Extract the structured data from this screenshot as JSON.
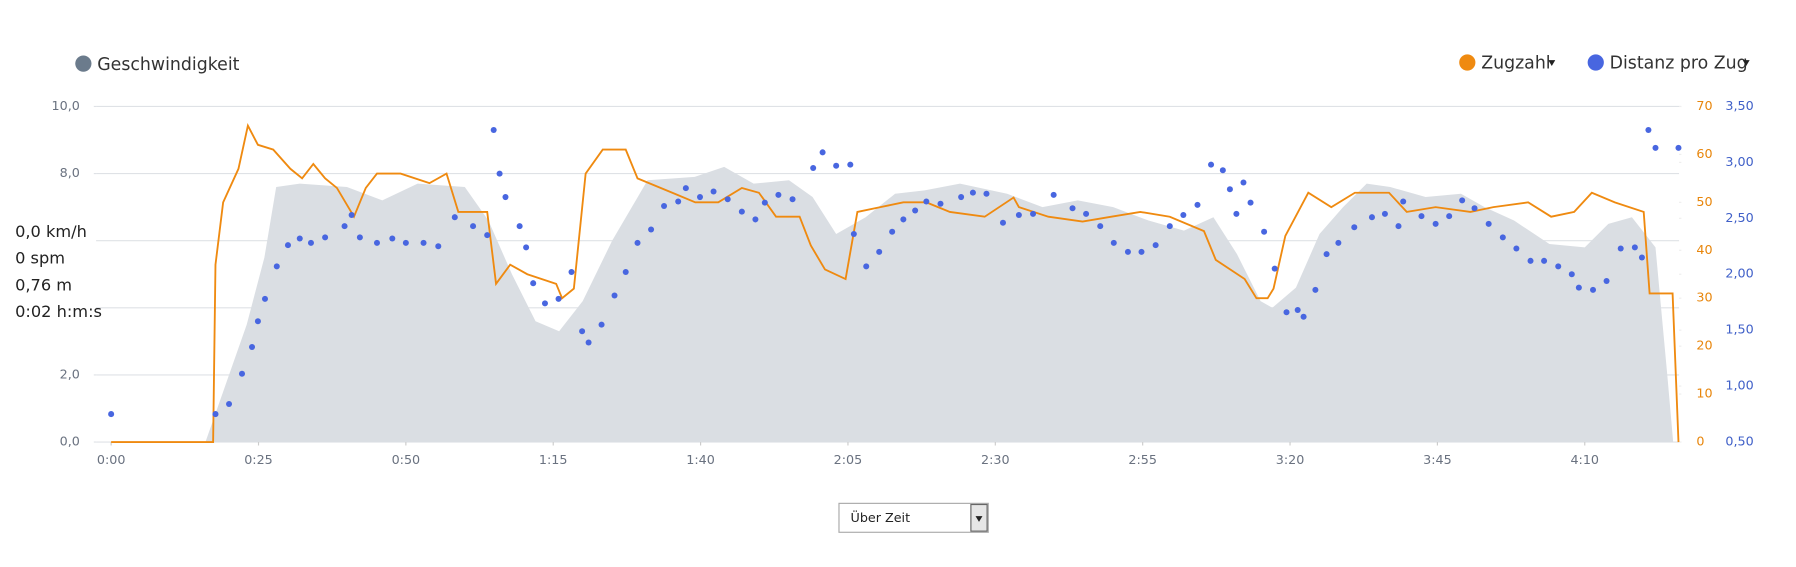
{
  "chart_data": {
    "type": "combo",
    "xlim": [
      0,
      266
    ],
    "xticks": [
      {
        "value": 0,
        "label": "0:00"
      },
      {
        "value": 25,
        "label": "0:25"
      },
      {
        "value": 50,
        "label": "0:50"
      },
      {
        "value": 75,
        "label": "1:15"
      },
      {
        "value": 100,
        "label": "1:40"
      },
      {
        "value": 125,
        "label": "2:05"
      },
      {
        "value": 150,
        "label": "2:30"
      },
      {
        "value": 175,
        "label": "2:55"
      },
      {
        "value": 200,
        "label": "3:20"
      },
      {
        "value": 225,
        "label": "3:45"
      },
      {
        "value": 250,
        "label": "4:10"
      }
    ],
    "ylim": [
      0,
      10
    ],
    "yticks": [
      {
        "value": 0,
        "label": "0,0"
      },
      {
        "value": 2,
        "label": "2,0"
      },
      {
        "value": 8,
        "label": "8,0"
      },
      {
        "value": 10,
        "label": "10,0"
      }
    ],
    "y2lim": [
      0,
      70
    ],
    "y2ticks": [
      0,
      10,
      20,
      30,
      40,
      50,
      60,
      70
    ],
    "y3lim": [
      0.5,
      3.5
    ],
    "y3ticks": [
      {
        "value": 0.5,
        "label": "0,50"
      },
      {
        "value": 1,
        "label": "1,00"
      },
      {
        "value": 1.5,
        "label": "1,50"
      },
      {
        "value": 2,
        "label": "2,00"
      },
      {
        "value": 2.5,
        "label": "2,50"
      },
      {
        "value": 3,
        "label": "3,00"
      },
      {
        "value": 3.5,
        "label": "3,50"
      }
    ],
    "grid": true,
    "series": [
      {
        "name": "Geschwindigkeit",
        "kind": "area",
        "color": "#dadee3",
        "legend_color": "#6b7b8c",
        "axis": "y",
        "x": [
          0,
          16,
          19,
          23,
          26,
          28,
          32,
          40,
          46,
          52,
          60,
          64,
          68,
          72,
          76,
          80,
          85,
          91,
          99,
          104,
          109,
          115,
          119,
          123,
          128,
          133,
          138,
          144,
          152,
          158,
          164,
          170,
          176,
          182,
          187,
          191,
          195,
          197,
          201,
          205,
          209,
          213,
          217,
          223,
          229,
          233,
          238,
          244,
          250,
          254,
          258,
          262,
          264,
          265
        ],
        "values": [
          0,
          0,
          1.5,
          3.5,
          5.5,
          7.6,
          7.7,
          7.6,
          7.2,
          7.7,
          7.6,
          6.6,
          5.0,
          3.6,
          3.3,
          4.2,
          6.0,
          7.8,
          7.9,
          8.2,
          7.7,
          7.8,
          7.3,
          6.2,
          6.7,
          7.4,
          7.5,
          7.7,
          7.4,
          7.0,
          7.2,
          7.0,
          6.6,
          6.3,
          6.7,
          5.6,
          4.2,
          4.0,
          4.6,
          6.2,
          7.0,
          7.7,
          7.6,
          7.3,
          7.4,
          7.0,
          6.6,
          5.9,
          5.8,
          6.5,
          6.7,
          5.8,
          2,
          0
        ]
      },
      {
        "name": "Zugzahl",
        "kind": "line",
        "color": "#ef8a10",
        "axis": "y2",
        "x": [
          0,
          17.3,
          17.7,
          19,
          21.6,
          23.2,
          24.9,
          27.5,
          30.4,
          32.4,
          34.3,
          36.3,
          38.3,
          41.2,
          43.2,
          45.1,
          49.1,
          54,
          56.9,
          58.9,
          63.8,
          65.3,
          67.7,
          70.6,
          75.5,
          76.5,
          78.5,
          80.5,
          83.4,
          87.3,
          89.3,
          95.2,
          99.1,
          103,
          107,
          109.9,
          112.8,
          116.8,
          118.7,
          121.1,
          124.6,
          126.6,
          130.5,
          134.4,
          138.3,
          142.3,
          148.2,
          153.1,
          154,
          159,
          164.8,
          169.7,
          174.6,
          179.6,
          185.4,
          187.4,
          192.3,
          194.3,
          196.2,
          197.2,
          199.2,
          203.1,
          207,
          211,
          216.8,
          219.8,
          224.7,
          230.6,
          234.5,
          240.4,
          244.3,
          248.2,
          251.2,
          255.1,
          260,
          261,
          264.9,
          265.9
        ],
        "values": [
          0,
          0,
          37,
          50,
          57,
          66,
          62,
          61,
          57,
          55,
          58,
          55,
          53,
          47,
          53,
          56,
          56,
          54,
          56,
          48,
          48,
          33,
          37,
          35,
          33,
          30,
          32,
          56,
          61,
          61,
          55,
          52,
          50,
          50,
          53,
          52,
          47,
          47,
          41,
          36,
          34,
          48,
          49,
          50,
          50,
          48,
          47,
          51,
          49,
          47,
          46,
          47,
          48,
          47,
          44,
          38,
          34,
          30,
          30,
          32,
          43,
          52,
          49,
          52,
          52,
          48,
          49,
          48,
          49,
          50,
          47,
          48,
          52,
          50,
          48,
          31,
          31,
          0
        ]
      },
      {
        "name": "Distanz pro Zug",
        "kind": "dots",
        "color": "#4866e0",
        "axis": "y3",
        "x": [
          0,
          17.7,
          20,
          22.2,
          23.9,
          24.9,
          26.1,
          28.1,
          30,
          32,
          33.9,
          36.3,
          39.6,
          40.8,
          42.2,
          45.1,
          47.7,
          50,
          53,
          55.5,
          58.3,
          61.4,
          63.8,
          64.9,
          65.9,
          66.9,
          69.3,
          70.4,
          71.6,
          73.6,
          75.9,
          78.1,
          79.9,
          81,
          83.2,
          85.4,
          87.3,
          89.3,
          91.6,
          93.8,
          96.2,
          97.5,
          99.9,
          102.2,
          104.6,
          107,
          109.3,
          110.9,
          113.2,
          115.6,
          119.1,
          120.7,
          123,
          125.4,
          126,
          128.1,
          130.3,
          132.5,
          134.4,
          136.4,
          138.3,
          140.7,
          144.2,
          146.2,
          148.5,
          151.3,
          154,
          156.4,
          159.9,
          163.1,
          165.4,
          167.8,
          170.1,
          172.5,
          174.8,
          177.2,
          179.6,
          181.9,
          184.3,
          186.6,
          188.6,
          189.8,
          190.9,
          192.1,
          193.3,
          195.6,
          197.4,
          199.4,
          201.3,
          202.3,
          204.3,
          206.2,
          208.2,
          210.9,
          213.9,
          216.1,
          218.4,
          219.2,
          222.3,
          224.7,
          227,
          229.2,
          231.3,
          233.7,
          236.1,
          238.4,
          240.8,
          243.1,
          245.5,
          247.8,
          249,
          251.4,
          253.7,
          256.1,
          258.5,
          259.7,
          260.8,
          262,
          265.9
        ],
        "values": [
          0.75,
          0.75,
          0.84,
          1.11,
          1.35,
          1.58,
          1.78,
          2.07,
          2.26,
          2.32,
          2.28,
          2.33,
          2.43,
          2.53,
          2.33,
          2.28,
          2.32,
          2.28,
          2.28,
          2.25,
          2.51,
          2.43,
          2.35,
          3.29,
          2.9,
          2.69,
          2.43,
          2.24,
          1.92,
          1.74,
          1.78,
          2.02,
          1.49,
          1.39,
          1.55,
          1.81,
          2.02,
          2.28,
          2.4,
          2.61,
          2.65,
          2.77,
          2.69,
          2.74,
          2.67,
          2.56,
          2.49,
          2.64,
          2.71,
          2.67,
          2.95,
          3.09,
          2.97,
          2.98,
          2.36,
          2.07,
          2.2,
          2.38,
          2.49,
          2.57,
          2.65,
          2.63,
          2.69,
          2.73,
          2.72,
          2.46,
          2.53,
          2.54,
          2.71,
          2.59,
          2.54,
          2.43,
          2.28,
          2.2,
          2.2,
          2.26,
          2.43,
          2.53,
          2.62,
          2.98,
          2.93,
          2.76,
          2.54,
          2.82,
          2.64,
          2.38,
          2.05,
          1.66,
          1.68,
          1.62,
          1.86,
          2.18,
          2.28,
          2.42,
          2.51,
          2.54,
          2.43,
          2.65,
          2.52,
          2.45,
          2.52,
          2.66,
          2.59,
          2.45,
          2.33,
          2.23,
          2.12,
          2.12,
          2.07,
          2.0,
          1.88,
          1.86,
          1.94,
          2.23,
          2.24,
          2.15,
          3.29,
          3.13,
          3.13
        ]
      }
    ]
  },
  "readout": [
    "0,0 km/h",
    "0 spm",
    "0,76 m",
    "0:02 h:m:s"
  ],
  "selector": "Über Zeit"
}
